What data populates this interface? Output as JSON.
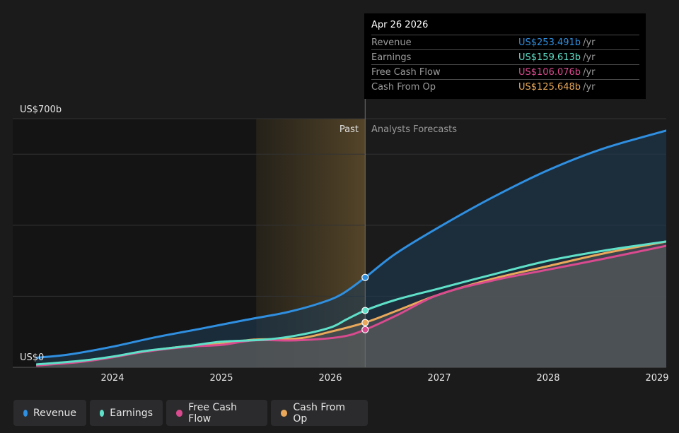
{
  "chart_data": {
    "type": "area",
    "x_start": 2023.3,
    "x_end": 2029.1,
    "xticks": [
      {
        "value": 2024,
        "label": "2024"
      },
      {
        "value": 2025,
        "label": "2025"
      },
      {
        "value": 2026,
        "label": "2026"
      },
      {
        "value": 2027,
        "label": "2027"
      },
      {
        "value": 2028,
        "label": "2028"
      },
      {
        "value": 2029,
        "label": "2029"
      }
    ],
    "ylim": [
      0,
      700
    ],
    "y_top_label": "US$700b",
    "y_bottom_label": "US$0",
    "gridlines": [
      0,
      200,
      400,
      600,
      700
    ],
    "past_label": "Past",
    "forecast_label": "Analysts Forecasts",
    "divider_x": 2026.32,
    "highlight_start": 2025.32,
    "series": [
      {
        "name": "Revenue",
        "key": "revenue",
        "color": "#2f8fe0",
        "points": [
          [
            2023.3,
            27
          ],
          [
            2023.6,
            36
          ],
          [
            2024.0,
            58
          ],
          [
            2024.4,
            85
          ],
          [
            2024.8,
            108
          ],
          [
            2025.2,
            132
          ],
          [
            2025.6,
            155
          ],
          [
            2025.9,
            180
          ],
          [
            2026.1,
            205
          ],
          [
            2026.32,
            253
          ],
          [
            2026.6,
            320
          ],
          [
            2027.0,
            395
          ],
          [
            2027.5,
            480
          ],
          [
            2028.0,
            555
          ],
          [
            2028.5,
            615
          ],
          [
            2029.1,
            668
          ]
        ]
      },
      {
        "name": "Earnings",
        "key": "earnings",
        "color": "#5fe0c8",
        "points": [
          [
            2023.3,
            8
          ],
          [
            2023.7,
            18
          ],
          [
            2024.0,
            30
          ],
          [
            2024.3,
            46
          ],
          [
            2024.7,
            60
          ],
          [
            2025.0,
            72
          ],
          [
            2025.4,
            78
          ],
          [
            2025.7,
            90
          ],
          [
            2026.0,
            112
          ],
          [
            2026.15,
            135
          ],
          [
            2026.32,
            160
          ],
          [
            2026.6,
            190
          ],
          [
            2027.0,
            222
          ],
          [
            2027.5,
            262
          ],
          [
            2028.0,
            300
          ],
          [
            2028.5,
            328
          ],
          [
            2029.1,
            355
          ]
        ]
      },
      {
        "name": "Free Cash Flow",
        "key": "fcf",
        "color": "#d94a8e",
        "points": [
          [
            2023.3,
            5
          ],
          [
            2023.7,
            15
          ],
          [
            2024.0,
            28
          ],
          [
            2024.3,
            44
          ],
          [
            2024.7,
            58
          ],
          [
            2025.0,
            63
          ],
          [
            2025.3,
            76
          ],
          [
            2025.7,
            76
          ],
          [
            2026.1,
            86
          ],
          [
            2026.32,
            106
          ],
          [
            2026.6,
            145
          ],
          [
            2027.0,
            205
          ],
          [
            2027.5,
            245
          ],
          [
            2028.0,
            275
          ],
          [
            2028.5,
            305
          ],
          [
            2029.1,
            343
          ]
        ]
      },
      {
        "name": "Cash From Op",
        "key": "cfo",
        "color": "#eaa95a",
        "points": [
          [
            2023.3,
            6
          ],
          [
            2023.7,
            16
          ],
          [
            2024.0,
            29
          ],
          [
            2024.3,
            45
          ],
          [
            2024.7,
            60
          ],
          [
            2025.0,
            66
          ],
          [
            2025.3,
            78
          ],
          [
            2025.7,
            81
          ],
          [
            2026.0,
            100
          ],
          [
            2026.32,
            126
          ],
          [
            2026.6,
            158
          ],
          [
            2027.0,
            205
          ],
          [
            2027.5,
            250
          ],
          [
            2028.0,
            285
          ],
          [
            2028.5,
            320
          ],
          [
            2029.1,
            355
          ]
        ]
      }
    ]
  },
  "tooltip": {
    "date": "Apr 26 2026",
    "unit": "/yr",
    "rows": [
      {
        "label": "Revenue",
        "value": "US$253.491b",
        "color": "#2f8fe0"
      },
      {
        "label": "Earnings",
        "value": "US$159.613b",
        "color": "#5fe0c8"
      },
      {
        "label": "Free Cash Flow",
        "value": "US$106.076b",
        "color": "#d94a8e"
      },
      {
        "label": "Cash From Op",
        "value": "US$125.648b",
        "color": "#eaa95a"
      }
    ]
  },
  "legend": [
    {
      "label": "Revenue",
      "color": "#2f8fe0"
    },
    {
      "label": "Earnings",
      "color": "#5fe0c8"
    },
    {
      "label": "Free Cash Flow",
      "color": "#d94a8e"
    },
    {
      "label": "Cash From Op",
      "color": "#eaa95a"
    }
  ]
}
